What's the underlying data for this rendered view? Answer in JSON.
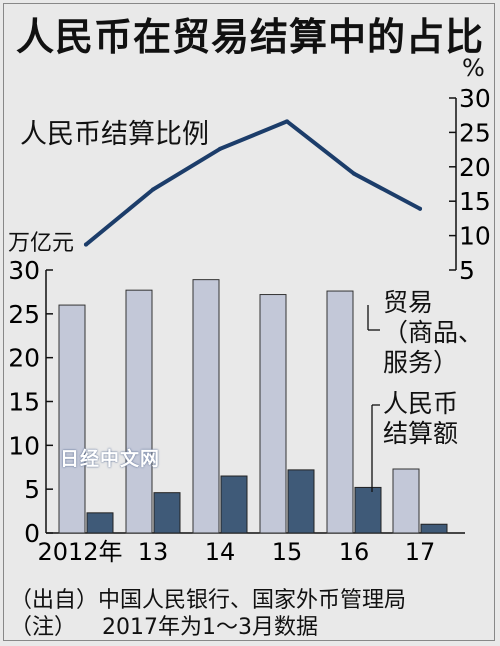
{
  "title": "人民币在贸易结算中的占比",
  "unit_right": "%",
  "unit_left": "万亿元",
  "line_label": "人民币结算比例",
  "trade_label_line1": "贸易",
  "trade_label_line2": "（商品、",
  "trade_label_line3": "服务）",
  "rmb_label_line1": "人民币",
  "rmb_label_line2": "结算额",
  "watermark": "日经中文网",
  "source": "（出自）中国人民银行、国家外币管理局",
  "note_prefix": "（注）",
  "note_text": "2017年为1～3月数据",
  "colors": {
    "background": "#e9e9e9",
    "trade_bar": "#c3c8d8",
    "rmb_bar": "#3f5a78",
    "line": "#1c3d6a"
  },
  "chart_data": [
    {
      "type": "bar",
      "categories": [
        "2012年",
        "13",
        "14",
        "15",
        "16",
        "17"
      ],
      "series": [
        {
          "name": "贸易（商品、服务）",
          "values": [
            26.0,
            27.7,
            28.9,
            27.2,
            27.6,
            7.3
          ]
        },
        {
          "name": "人民币结算额",
          "values": [
            2.3,
            4.6,
            6.5,
            7.2,
            5.2,
            1.0
          ]
        }
      ],
      "ylabel": "万亿元",
      "ylim": [
        0,
        30
      ],
      "yticks": [
        0,
        5,
        10,
        15,
        20,
        25,
        30
      ]
    },
    {
      "type": "line",
      "categories": [
        "2012年",
        "13",
        "14",
        "15",
        "16",
        "17"
      ],
      "series": [
        {
          "name": "人民币结算比例",
          "values": [
            8.7,
            16.7,
            22.6,
            26.6,
            19.0,
            13.9
          ]
        }
      ],
      "ylabel": "%",
      "ylim": [
        5,
        30
      ],
      "yticks": [
        5,
        10,
        15,
        20,
        25,
        30
      ]
    }
  ]
}
